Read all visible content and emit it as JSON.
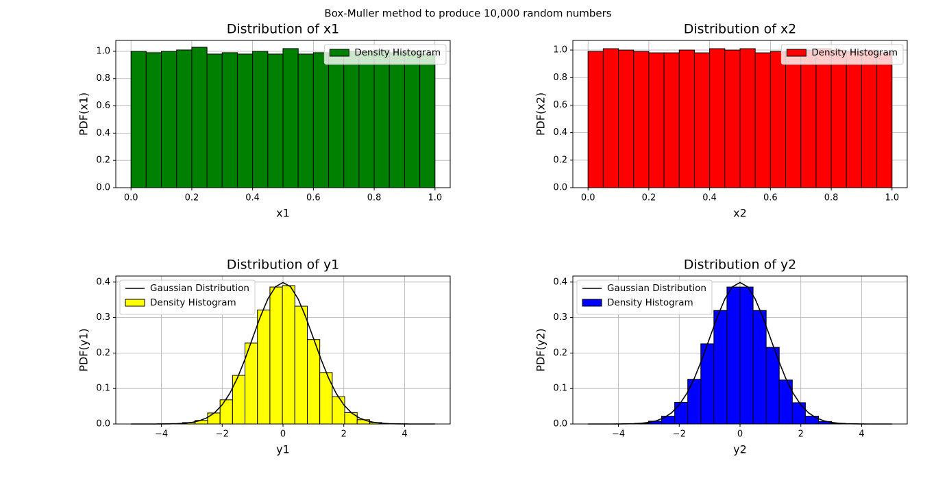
{
  "title": "Box-Muller method to produce 10,000 random numbers",
  "chart_data": [
    {
      "type": "histogram",
      "title": "Distribution of x1",
      "xlabel": "x1",
      "ylabel": "PDF(x1)",
      "bins": [
        0,
        0.05,
        0.1,
        0.15,
        0.2,
        0.25,
        0.3,
        0.35,
        0.4,
        0.45,
        0.5,
        0.55,
        0.6,
        0.65,
        0.7,
        0.75,
        0.8,
        0.85,
        0.9,
        0.95,
        1.0
      ],
      "series": [
        {
          "name": "Density Histogram",
          "color": "#008000",
          "values": [
            1.0,
            0.99,
            1.0,
            1.01,
            1.03,
            0.98,
            0.99,
            0.98,
            1.0,
            0.98,
            1.02,
            0.98,
            0.99,
            0.99,
            1.0,
            1.0,
            1.01,
            0.99,
            1.0,
            0.98
          ]
        }
      ],
      "xlim": [
        -0.05,
        1.05
      ],
      "ylim": [
        0,
        1.08
      ],
      "xticks": [
        {
          "value": 0,
          "label": "0.0"
        },
        0.2,
        0.4,
        0.6,
        0.8,
        {
          "value": 1,
          "label": "1.0"
        }
      ],
      "yticks": [
        {
          "value": 0,
          "label": "0.0"
        },
        0.2,
        0.4,
        0.6,
        0.8,
        {
          "value": 1,
          "label": "1.0"
        }
      ],
      "grid": true,
      "legend": "upper right"
    },
    {
      "type": "histogram",
      "title": "Distribution of x2",
      "xlabel": "x2",
      "ylabel": "PDF(x2)",
      "bins": [
        0,
        0.05,
        0.1,
        0.15,
        0.2,
        0.25,
        0.3,
        0.35,
        0.4,
        0.45,
        0.5,
        0.55,
        0.6,
        0.65,
        0.7,
        0.75,
        0.8,
        0.85,
        0.9,
        0.95,
        1.0
      ],
      "series": [
        {
          "name": "Density Histogram",
          "color": "#ff0000",
          "values": [
            0.99,
            1.01,
            1.0,
            0.99,
            0.98,
            0.98,
            1.0,
            0.98,
            1.01,
            1.0,
            1.01,
            0.98,
            0.99,
            0.99,
            1.0,
            1.01,
            1.0,
            0.99,
            1.0,
            0.98
          ]
        }
      ],
      "xlim": [
        -0.05,
        1.05
      ],
      "ylim": [
        0,
        1.07
      ],
      "xticks": [
        {
          "value": 0,
          "label": "0.0"
        },
        0.2,
        0.4,
        0.6,
        0.8,
        {
          "value": 1,
          "label": "1.0"
        }
      ],
      "yticks": [
        {
          "value": 0,
          "label": "0.0"
        },
        0.2,
        0.4,
        0.6,
        0.8,
        {
          "value": 1,
          "label": "1.0"
        }
      ],
      "grid": true,
      "legend": "upper right"
    },
    {
      "type": "histogram",
      "title": "Distribution of y1",
      "xlabel": "y1",
      "ylabel": "PDF(y1)",
      "bins": [
        -4.12,
        -3.71,
        -3.3,
        -2.89,
        -2.48,
        -2.07,
        -1.66,
        -1.25,
        -0.84,
        -0.43,
        -0.02,
        0.39,
        0.8,
        1.21,
        1.62,
        2.03,
        2.44,
        2.85,
        3.26,
        3.67,
        4.08
      ],
      "series": [
        {
          "name": "Density Histogram",
          "color": "#ffff00",
          "values": [
            0.0005,
            0.001,
            0.004,
            0.01,
            0.031,
            0.068,
            0.137,
            0.228,
            0.321,
            0.386,
            0.39,
            0.332,
            0.238,
            0.145,
            0.077,
            0.032,
            0.012,
            0.004,
            0.001,
            0.0005
          ]
        }
      ],
      "lines": [
        {
          "name": "Gaussian Distribution",
          "color": "#000000",
          "x": [
            -5,
            -4.75,
            -4.5,
            -4.25,
            -4,
            -3.75,
            -3.5,
            -3.25,
            -3,
            -2.75,
            -2.5,
            -2.25,
            -2,
            -1.75,
            -1.5,
            -1.25,
            -1,
            -0.75,
            -0.5,
            -0.25,
            0,
            0.25,
            0.5,
            0.75,
            1,
            1.25,
            1.5,
            1.75,
            2,
            2.25,
            2.5,
            2.75,
            3,
            3.25,
            3.5,
            3.75,
            4,
            4.25,
            4.5,
            4.75,
            5
          ],
          "values": [
            0,
            0,
            0,
            0,
            0.0001,
            0.0004,
            0.0009,
            0.002,
            0.0044,
            0.0091,
            0.0175,
            0.0317,
            0.054,
            0.0863,
            0.1295,
            0.1826,
            0.242,
            0.3011,
            0.3521,
            0.3867,
            0.3989,
            0.3867,
            0.3521,
            0.3011,
            0.242,
            0.1826,
            0.1295,
            0.0863,
            0.054,
            0.0317,
            0.0175,
            0.0091,
            0.0044,
            0.002,
            0.0009,
            0.0004,
            0.0001,
            0,
            0,
            0,
            0
          ]
        }
      ],
      "xlim": [
        -5.5,
        5.5
      ],
      "ylim": [
        0,
        0.417
      ],
      "xticks": [
        {
          "value": -4,
          "label": "−4"
        },
        {
          "value": -2,
          "label": "−2"
        },
        0,
        2,
        4
      ],
      "yticks": [
        {
          "value": 0,
          "label": "0.0"
        },
        0.1,
        0.2,
        0.3,
        0.4
      ],
      "grid": true,
      "legend": "upper left"
    },
    {
      "type": "histogram",
      "title": "Distribution of y2",
      "xlabel": "y2",
      "ylabel": "PDF(y2)",
      "bins": [
        -3.44,
        -3.01,
        -2.58,
        -2.15,
        -1.72,
        -1.29,
        -0.86,
        -0.43,
        0,
        0.43,
        0.86,
        1.29,
        1.72,
        2.15,
        2.58,
        3.01,
        3.44
      ],
      "series": [
        {
          "name": "Density Histogram",
          "color": "#0000ff",
          "values": [
            0.002,
            0.008,
            0.022,
            0.061,
            0.126,
            0.226,
            0.32,
            0.386,
            0.386,
            0.32,
            0.216,
            0.124,
            0.06,
            0.022,
            0.007,
            0.002
          ]
        }
      ],
      "lines": [
        {
          "name": "Gaussian Distribution",
          "color": "#000000",
          "x": [
            -5,
            -4.75,
            -4.5,
            -4.25,
            -4,
            -3.75,
            -3.5,
            -3.25,
            -3,
            -2.75,
            -2.5,
            -2.25,
            -2,
            -1.75,
            -1.5,
            -1.25,
            -1,
            -0.75,
            -0.5,
            -0.25,
            0,
            0.25,
            0.5,
            0.75,
            1,
            1.25,
            1.5,
            1.75,
            2,
            2.25,
            2.5,
            2.75,
            3,
            3.25,
            3.5,
            3.75,
            4,
            4.25,
            4.5,
            4.75,
            5
          ],
          "values": [
            0,
            0,
            0,
            0,
            0.0001,
            0.0004,
            0.0009,
            0.002,
            0.0044,
            0.0091,
            0.0175,
            0.0317,
            0.054,
            0.0863,
            0.1295,
            0.1826,
            0.242,
            0.3011,
            0.3521,
            0.3867,
            0.3989,
            0.3867,
            0.3521,
            0.3011,
            0.242,
            0.1826,
            0.1295,
            0.0863,
            0.054,
            0.0317,
            0.0175,
            0.0091,
            0.0044,
            0.002,
            0.0009,
            0.0004,
            0.0001,
            0,
            0,
            0,
            0
          ]
        }
      ],
      "xlim": [
        -5.5,
        5.5
      ],
      "ylim": [
        0,
        0.417
      ],
      "xticks": [
        {
          "value": -4,
          "label": "−4"
        },
        {
          "value": -2,
          "label": "−2"
        },
        0,
        2,
        4
      ],
      "yticks": [
        {
          "value": 0,
          "label": "0.0"
        },
        0.1,
        0.2,
        0.3,
        0.4
      ],
      "grid": true,
      "legend": "upper left"
    }
  ]
}
